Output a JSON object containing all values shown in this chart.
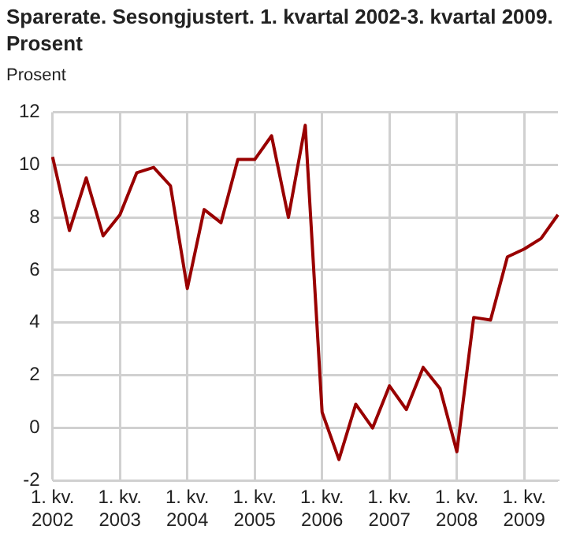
{
  "chart_data": {
    "type": "line",
    "title": "Sparerate. Sesongjustert. 1. kvartal 2002-3. kvartal 2009. Prosent",
    "ylabel": "Prosent",
    "categories": [
      "1. kv.\n2002",
      null,
      null,
      null,
      "1. kv.\n2003",
      null,
      null,
      null,
      "1. kv.\n2004",
      null,
      null,
      null,
      "1. kv.\n2005",
      null,
      null,
      null,
      "1. kv.\n2006",
      null,
      null,
      null,
      "1. kv.\n2007",
      null,
      null,
      null,
      "1. kv.\n2008",
      null,
      null,
      null,
      "1. kv.\n2009",
      null,
      null
    ],
    "series": [
      {
        "color": "#990000",
        "values": [
          10.3,
          7.5,
          9.5,
          7.3,
          8.1,
          9.7,
          9.9,
          9.2,
          5.3,
          8.3,
          7.8,
          10.2,
          10.2,
          11.1,
          8.0,
          11.5,
          0.6,
          -1.2,
          0.9,
          0.0,
          1.6,
          0.7,
          2.3,
          1.5,
          -0.9,
          4.2,
          4.1,
          6.5,
          6.8,
          7.2,
          8.1
        ]
      }
    ],
    "ylim": [
      -2,
      12
    ],
    "yticks": [
      -2,
      0,
      2,
      4,
      6,
      8,
      10,
      12
    ],
    "grid": true,
    "legend": false,
    "marker": "none",
    "line_style": "solid"
  }
}
